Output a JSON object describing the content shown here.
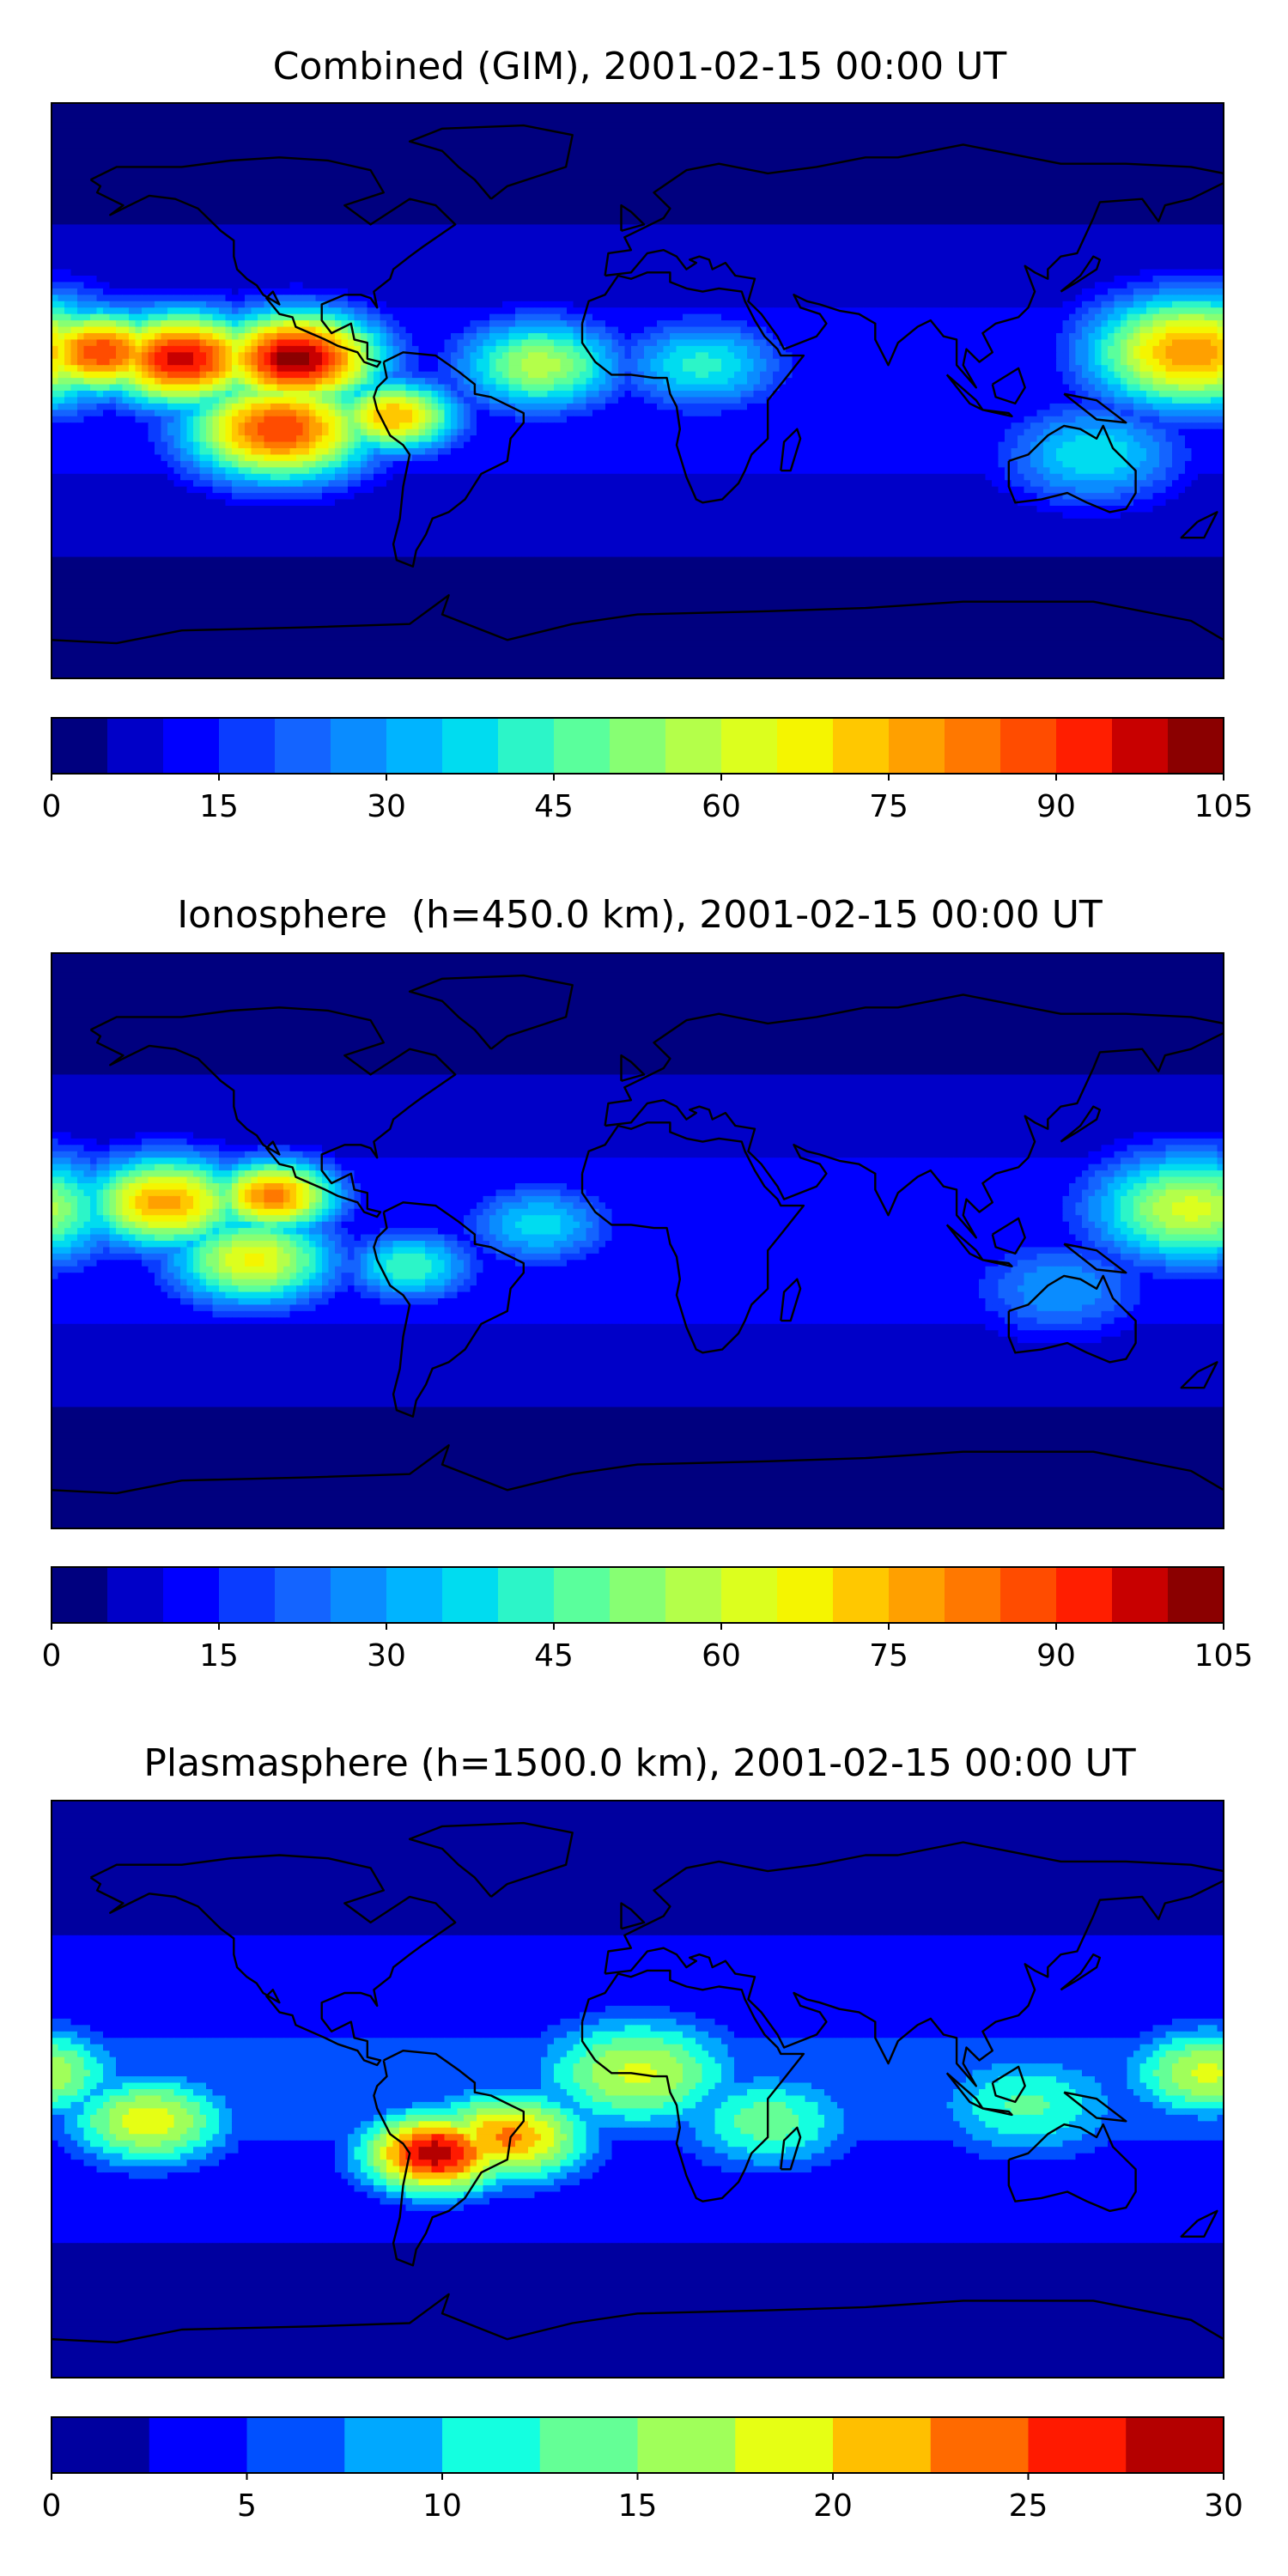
{
  "figure": {
    "background": "#ffffff"
  },
  "chart_data": [
    {
      "type": "heatmap",
      "map_projection": "equirectangular",
      "title": "Combined (GIM), 2001-02-15 00:00 UT",
      "colormap": "jet",
      "colorbar": {
        "range": [
          0,
          105
        ],
        "step": 5,
        "ticks": [
          0,
          15,
          30,
          45,
          60,
          75,
          90,
          105
        ],
        "tick_labels": [
          "0",
          "15",
          "30",
          "45",
          "60",
          "75",
          "90",
          "105"
        ],
        "colors": [
          "#00007f",
          "#0000c8",
          "#0000ff",
          "#0a3cff",
          "#1464ff",
          "#0a8cff",
          "#00b4ff",
          "#00dcf0",
          "#2cf5c8",
          "#5aff9c",
          "#87ff73",
          "#b4ff4a",
          "#dcff1e",
          "#f5f500",
          "#ffc800",
          "#ffa000",
          "#ff7800",
          "#ff4c00",
          "#ff1e00",
          "#c80000",
          "#8b0000"
        ]
      },
      "features": [
        {
          "lon": -140,
          "lat": 10,
          "value": 98,
          "spread": 18
        },
        {
          "lon": -105,
          "lat": 10,
          "value": 104,
          "spread": 18
        },
        {
          "lon": -165,
          "lat": 12,
          "value": 90,
          "spread": 16
        },
        {
          "lon": -110,
          "lat": -12,
          "value": 90,
          "spread": 20
        },
        {
          "lon": -75,
          "lat": -8,
          "value": 75,
          "spread": 14
        },
        {
          "lon": -30,
          "lat": 8,
          "value": 58,
          "spread": 18
        },
        {
          "lon": 20,
          "lat": 8,
          "value": 42,
          "spread": 18
        },
        {
          "lon": 170,
          "lat": 12,
          "value": 80,
          "spread": 22
        },
        {
          "lon": 140,
          "lat": -20,
          "value": 40,
          "spread": 20
        }
      ]
    },
    {
      "type": "heatmap",
      "map_projection": "equirectangular",
      "title": "Ionosphere  (h=450.0 km), 2001-02-15 00:00 UT",
      "colormap": "jet",
      "colorbar": {
        "range": [
          0,
          105
        ],
        "step": 5,
        "ticks": [
          0,
          15,
          30,
          45,
          60,
          75,
          90,
          105
        ],
        "tick_labels": [
          "0",
          "15",
          "30",
          "45",
          "60",
          "75",
          "90",
          "105"
        ],
        "colors": [
          "#00007f",
          "#0000c8",
          "#0000ff",
          "#0a3cff",
          "#1464ff",
          "#0a8cff",
          "#00b4ff",
          "#00dcf0",
          "#2cf5c8",
          "#5aff9c",
          "#87ff73",
          "#b4ff4a",
          "#dcff1e",
          "#f5f500",
          "#ffc800",
          "#ffa000",
          "#ff7800",
          "#ff4c00",
          "#ff1e00",
          "#c80000",
          "#8b0000"
        ]
      },
      "features": [
        {
          "lon": -145,
          "lat": 12,
          "value": 78,
          "spread": 18
        },
        {
          "lon": -112,
          "lat": 14,
          "value": 82,
          "spread": 14
        },
        {
          "lon": -118,
          "lat": -6,
          "value": 66,
          "spread": 18
        },
        {
          "lon": -70,
          "lat": -8,
          "value": 45,
          "spread": 14
        },
        {
          "lon": -30,
          "lat": 5,
          "value": 38,
          "spread": 16
        },
        {
          "lon": 170,
          "lat": 10,
          "value": 62,
          "spread": 22
        },
        {
          "lon": 130,
          "lat": -15,
          "value": 30,
          "spread": 20
        }
      ]
    },
    {
      "type": "heatmap",
      "map_projection": "equirectangular",
      "title": "Plasmasphere (h=1500.0 km), 2001-02-15 00:00 UT",
      "colormap": "jet",
      "colorbar": {
        "range": [
          0,
          30
        ],
        "step": 2.5,
        "ticks": [
          0,
          5,
          10,
          15,
          20,
          25,
          30
        ],
        "tick_labels": [
          "0",
          "5",
          "10",
          "15",
          "20",
          "25",
          "30"
        ],
        "colors": [
          "#00009f",
          "#0000ff",
          "#0050ff",
          "#00a8ff",
          "#14ffe0",
          "#64ff96",
          "#a0ff5a",
          "#e6ff14",
          "#ffbf00",
          "#ff6a00",
          "#ff1a00",
          "#b40000"
        ]
      },
      "features": [
        {
          "lon": -62,
          "lat": -20,
          "value": 29,
          "spread": 16
        },
        {
          "lon": -40,
          "lat": -15,
          "value": 23,
          "spread": 18
        },
        {
          "lon": -150,
          "lat": -10,
          "value": 19,
          "spread": 18
        },
        {
          "lon": 0,
          "lat": 5,
          "value": 18,
          "spread": 22
        },
        {
          "lon": 40,
          "lat": -10,
          "value": 14,
          "spread": 20
        },
        {
          "lon": 175,
          "lat": 5,
          "value": 18,
          "spread": 18
        },
        {
          "lon": 120,
          "lat": -5,
          "value": 13,
          "spread": 22
        }
      ]
    }
  ]
}
